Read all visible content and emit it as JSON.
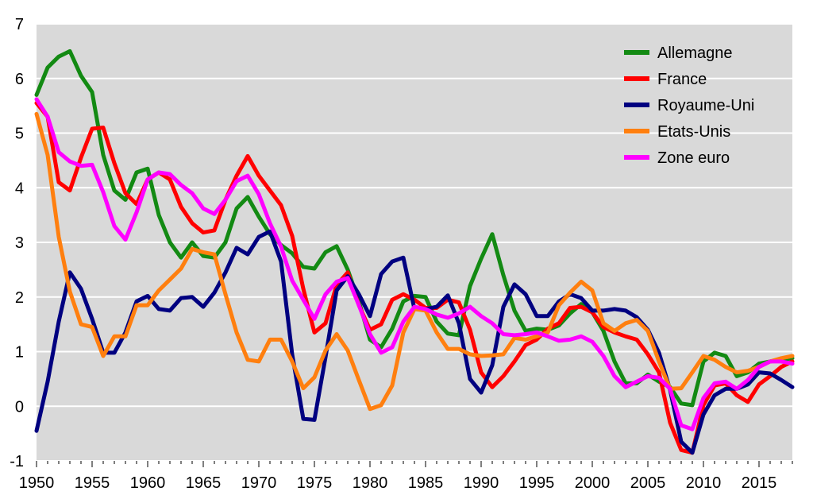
{
  "chart_data": {
    "type": "line",
    "title": "",
    "xlabel": "",
    "ylabel": "",
    "xlim": [
      1950,
      2018
    ],
    "ylim": [
      -1,
      7
    ],
    "grid": true,
    "legend_position": "top-right",
    "background": "#d9d9d9",
    "x_ticks": [
      "1950",
      "1955",
      "1960",
      "1965",
      "1970",
      "1975",
      "1980",
      "1985",
      "1990",
      "1995",
      "2000",
      "2005",
      "2010",
      "2015"
    ],
    "y_ticks": [
      "-1",
      "0",
      "1",
      "2",
      "3",
      "4",
      "5",
      "6",
      "7"
    ],
    "x": [
      1950,
      1951,
      1952,
      1953,
      1954,
      1955,
      1956,
      1957,
      1958,
      1959,
      1960,
      1961,
      1962,
      1963,
      1964,
      1965,
      1966,
      1967,
      1968,
      1969,
      1970,
      1971,
      1972,
      1973,
      1974,
      1975,
      1976,
      1977,
      1978,
      1979,
      1980,
      1981,
      1982,
      1983,
      1984,
      1985,
      1986,
      1987,
      1988,
      1989,
      1990,
      1991,
      1992,
      1993,
      1994,
      1995,
      1996,
      1997,
      1998,
      1999,
      2000,
      2001,
      2002,
      2003,
      2004,
      2005,
      2006,
      2007,
      2008,
      2009,
      2010,
      2011,
      2012,
      2013,
      2014,
      2015,
      2016,
      2017,
      2018
    ],
    "series": [
      {
        "name": "Allemagne",
        "color": "#138a13",
        "values": [
          5.7,
          6.2,
          6.4,
          6.5,
          6.05,
          5.75,
          4.6,
          3.95,
          3.78,
          4.28,
          4.35,
          3.5,
          3.0,
          2.72,
          3.0,
          2.75,
          2.72,
          3.0,
          3.62,
          3.83,
          3.47,
          3.15,
          2.95,
          2.8,
          2.55,
          2.52,
          2.82,
          2.93,
          2.5,
          1.92,
          1.22,
          1.08,
          1.42,
          1.92,
          2.02,
          2.0,
          1.55,
          1.33,
          1.3,
          2.2,
          2.7,
          3.15,
          2.4,
          1.75,
          1.38,
          1.42,
          1.4,
          1.48,
          1.7,
          1.87,
          1.72,
          1.38,
          0.82,
          0.42,
          0.42,
          0.58,
          0.45,
          0.35,
          0.05,
          0.02,
          0.82,
          0.98,
          0.92,
          0.55,
          0.62,
          0.78,
          0.82,
          0.85,
          0.88
        ]
      },
      {
        "name": "France",
        "color": "#ff0000",
        "values": [
          5.55,
          5.3,
          4.1,
          3.95,
          4.55,
          5.08,
          5.1,
          4.45,
          3.9,
          3.7,
          4.15,
          4.28,
          4.15,
          3.65,
          3.35,
          3.18,
          3.22,
          3.78,
          4.22,
          4.58,
          4.22,
          3.95,
          3.68,
          3.12,
          2.15,
          1.35,
          1.52,
          2.22,
          2.45,
          1.85,
          1.4,
          1.5,
          1.95,
          2.05,
          1.95,
          1.8,
          1.8,
          1.95,
          1.9,
          1.4,
          0.62,
          0.35,
          0.55,
          0.82,
          1.12,
          1.22,
          1.42,
          1.52,
          1.8,
          1.82,
          1.72,
          1.45,
          1.35,
          1.28,
          1.22,
          0.95,
          0.62,
          -0.3,
          -0.8,
          -0.85,
          0.02,
          0.38,
          0.42,
          0.2,
          0.08,
          0.4,
          0.55,
          0.72,
          0.82
        ]
      },
      {
        "name": "Royaume-Uni",
        "color": "#000080",
        "values": [
          -0.45,
          0.45,
          1.55,
          2.45,
          2.15,
          1.6,
          0.98,
          0.98,
          1.35,
          1.92,
          2.02,
          1.78,
          1.75,
          1.98,
          2.0,
          1.82,
          2.08,
          2.45,
          2.9,
          2.78,
          3.1,
          3.2,
          2.65,
          0.95,
          -0.23,
          -0.25,
          0.9,
          2.12,
          2.38,
          2.05,
          1.65,
          2.42,
          2.65,
          2.72,
          1.78,
          1.78,
          1.82,
          2.03,
          1.52,
          0.5,
          0.25,
          0.75,
          1.82,
          2.23,
          2.05,
          1.65,
          1.65,
          1.92,
          2.05,
          1.98,
          1.75,
          1.75,
          1.78,
          1.75,
          1.63,
          1.4,
          0.98,
          0.3,
          -0.65,
          -0.85,
          -0.15,
          0.2,
          0.32,
          0.32,
          0.4,
          0.62,
          0.6,
          0.48,
          0.35
        ]
      },
      {
        "name": "Etats-Unis",
        "color": "#ff7f0f",
        "values": [
          5.35,
          4.6,
          3.1,
          2.1,
          1.5,
          1.45,
          0.92,
          1.28,
          1.28,
          1.85,
          1.85,
          2.12,
          2.32,
          2.52,
          2.88,
          2.82,
          2.78,
          2.05,
          1.35,
          0.85,
          0.82,
          1.22,
          1.22,
          0.82,
          0.33,
          0.53,
          1.02,
          1.32,
          1.02,
          0.48,
          -0.05,
          0.02,
          0.38,
          1.35,
          1.78,
          1.75,
          1.35,
          1.05,
          1.05,
          0.95,
          0.92,
          0.93,
          0.95,
          1.25,
          1.22,
          1.28,
          1.35,
          1.85,
          2.08,
          2.28,
          2.12,
          1.52,
          1.38,
          1.52,
          1.58,
          1.38,
          0.82,
          0.32,
          0.33,
          0.62,
          0.92,
          0.85,
          0.72,
          0.62,
          0.65,
          0.72,
          0.82,
          0.88,
          0.92
        ]
      },
      {
        "name": "Zone euro",
        "color": "#ff00ff",
        "values": [
          5.62,
          5.3,
          4.65,
          4.48,
          4.4,
          4.42,
          3.92,
          3.3,
          3.05,
          3.55,
          4.15,
          4.28,
          4.25,
          4.05,
          3.9,
          3.62,
          3.52,
          3.78,
          4.12,
          4.22,
          3.88,
          3.35,
          2.92,
          2.3,
          1.95,
          1.6,
          2.05,
          2.28,
          2.35,
          1.85,
          1.32,
          0.98,
          1.08,
          1.55,
          1.82,
          1.78,
          1.68,
          1.62,
          1.7,
          1.82,
          1.65,
          1.52,
          1.32,
          1.3,
          1.32,
          1.35,
          1.28,
          1.2,
          1.22,
          1.28,
          1.18,
          0.92,
          0.55,
          0.35,
          0.45,
          0.55,
          0.52,
          0.32,
          -0.35,
          -0.42,
          0.15,
          0.42,
          0.45,
          0.32,
          0.48,
          0.72,
          0.82,
          0.82,
          0.78
        ]
      }
    ]
  }
}
